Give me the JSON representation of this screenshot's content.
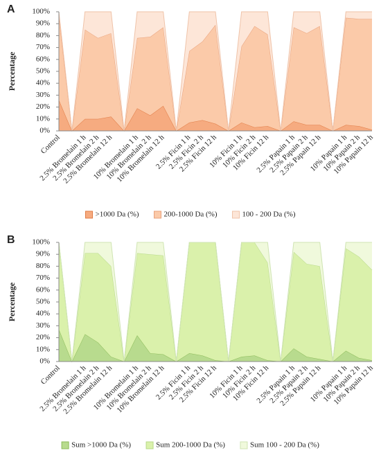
{
  "chart_data": [
    {
      "type": "stacked_area",
      "panel_label": "A",
      "y_label": "Percentage",
      "categories": [
        "Control",
        null,
        "2.5% Bromelain 1 h",
        "2.5% Bromelain 2 h",
        "2.5% Bromelain 12 h",
        null,
        "10% Bromelain 1 h",
        "10% Bromelain 2 h",
        "10% Bromelain 12 h",
        null,
        "2.5% Ficin 1 h",
        "2.5% Ficin 2 h",
        "2.5% Ficin 12 h",
        null,
        "10% Ficin 1 h",
        "10% Ficin 2 h",
        "10% Ficin 12 h",
        null,
        "2.5% Papain 1 h",
        "2.5% Papain 2 h",
        "2.5% Papain 12 h",
        null,
        "10% Papain 1 h",
        "10% Papain 2 h",
        "10% Papain 12 h"
      ],
      "series": [
        {
          "name": ">1000 Da (%)",
          "color": "#f6ab80",
          "edge": "#e07b45",
          "values": [
            26,
            0,
            10,
            10,
            12,
            0,
            19,
            13,
            21,
            0,
            7,
            9,
            6,
            0,
            7,
            3,
            4,
            0,
            8,
            5,
            5,
            0,
            5,
            4,
            1
          ]
        },
        {
          "name": "200-1000 Da (%)",
          "color": "#fbcaa9",
          "edge": "#e8a07a",
          "values": [
            71,
            0,
            75,
            68,
            70,
            0,
            59,
            66,
            66,
            0,
            60,
            66,
            83,
            0,
            64,
            85,
            77,
            0,
            79,
            77,
            83,
            0,
            90,
            90,
            93
          ]
        },
        {
          "name": "100 - 200 Da (%)",
          "color": "#fde6d8",
          "edge": "#efc3a9",
          "values": [
            3,
            0,
            15,
            22,
            18,
            0,
            22,
            21,
            13,
            0,
            33,
            25,
            11,
            0,
            29,
            12,
            19,
            0,
            13,
            18,
            12,
            0,
            5,
            6,
            6
          ]
        }
      ],
      "ylim": [
        0,
        100
      ],
      "yticks": [
        {
          "value": 0,
          "label": "0%"
        },
        {
          "value": 10,
          "label": "10%"
        },
        {
          "value": 20,
          "label": "20%"
        },
        {
          "value": 30,
          "label": "30%"
        },
        {
          "value": 40,
          "label": "40%"
        },
        {
          "value": 50,
          "label": "50%"
        },
        {
          "value": 60,
          "label": "60%"
        },
        {
          "value": 70,
          "label": "70%"
        },
        {
          "value": 80,
          "label": "80%"
        },
        {
          "value": 90,
          "label": "90%"
        },
        {
          "value": 100,
          "label": "100%"
        }
      ],
      "legend": "bottom"
    },
    {
      "type": "stacked_area",
      "panel_label": "B",
      "y_label": "Percentage",
      "categories": [
        "Control",
        null,
        "2.5% Bromelain 1 h",
        "2.5% Bromelain 2 h",
        "2.5% Bromelain 12 h",
        null,
        "10% Bromelain 1 h",
        "10% Bromelain 2 h",
        "10% Bromelain 12 h",
        null,
        "2.5% Ficin 1 h",
        "2.5% Ficin 2 h",
        "2.5% Ficin 12 h",
        null,
        "10% Ficin 1 h",
        "10% Ficin 2 h",
        "10% Ficin 12 h",
        null,
        "2.5% Papain 1 h",
        "2.5% Papain 2 h",
        "2.5% Papain 12 h",
        null,
        "10% Papain 1 h",
        "10% Papain 2 h",
        "10% Papain 12 h"
      ],
      "series": [
        {
          "name": "Sum >1000 Da (%)",
          "color": "#b8db8e",
          "edge": "#8cbb5a",
          "values": [
            27,
            0,
            23,
            16,
            4,
            0,
            22,
            7,
            6,
            0,
            7,
            5,
            1,
            0,
            4,
            5,
            1,
            0,
            11,
            4,
            2,
            0,
            9,
            3,
            1
          ]
        },
        {
          "name": "Sum 200-1000 Da (%)",
          "color": "#daf1ab",
          "edge": "#b7d98a",
          "values": [
            73,
            0,
            68,
            75,
            76,
            0,
            69,
            83,
            83,
            0,
            93,
            95,
            99,
            0,
            96,
            95,
            82,
            0,
            81,
            78,
            78,
            0,
            86,
            85,
            76
          ]
        },
        {
          "name": "Sum 100 - 200 Da (%)",
          "color": "#f0f9dc",
          "edge": "#cfe4b3",
          "values": [
            0,
            0,
            9,
            9,
            20,
            0,
            9,
            10,
            11,
            0,
            0,
            0,
            0,
            0,
            0,
            0,
            17,
            0,
            8,
            18,
            20,
            0,
            5,
            12,
            23
          ]
        }
      ],
      "ylim": [
        0,
        100
      ],
      "yticks": [
        {
          "value": 0,
          "label": "0%"
        },
        {
          "value": 10,
          "label": "10%"
        },
        {
          "value": 20,
          "label": "20%"
        },
        {
          "value": 30,
          "label": "30%"
        },
        {
          "value": 40,
          "label": "40%"
        },
        {
          "value": 50,
          "label": "50%"
        },
        {
          "value": 60,
          "label": "60%"
        },
        {
          "value": 70,
          "label": "70%"
        },
        {
          "value": 80,
          "label": "80%"
        },
        {
          "value": 90,
          "label": "90%"
        },
        {
          "value": 100,
          "label": "100%"
        }
      ],
      "legend": "bottom"
    }
  ]
}
